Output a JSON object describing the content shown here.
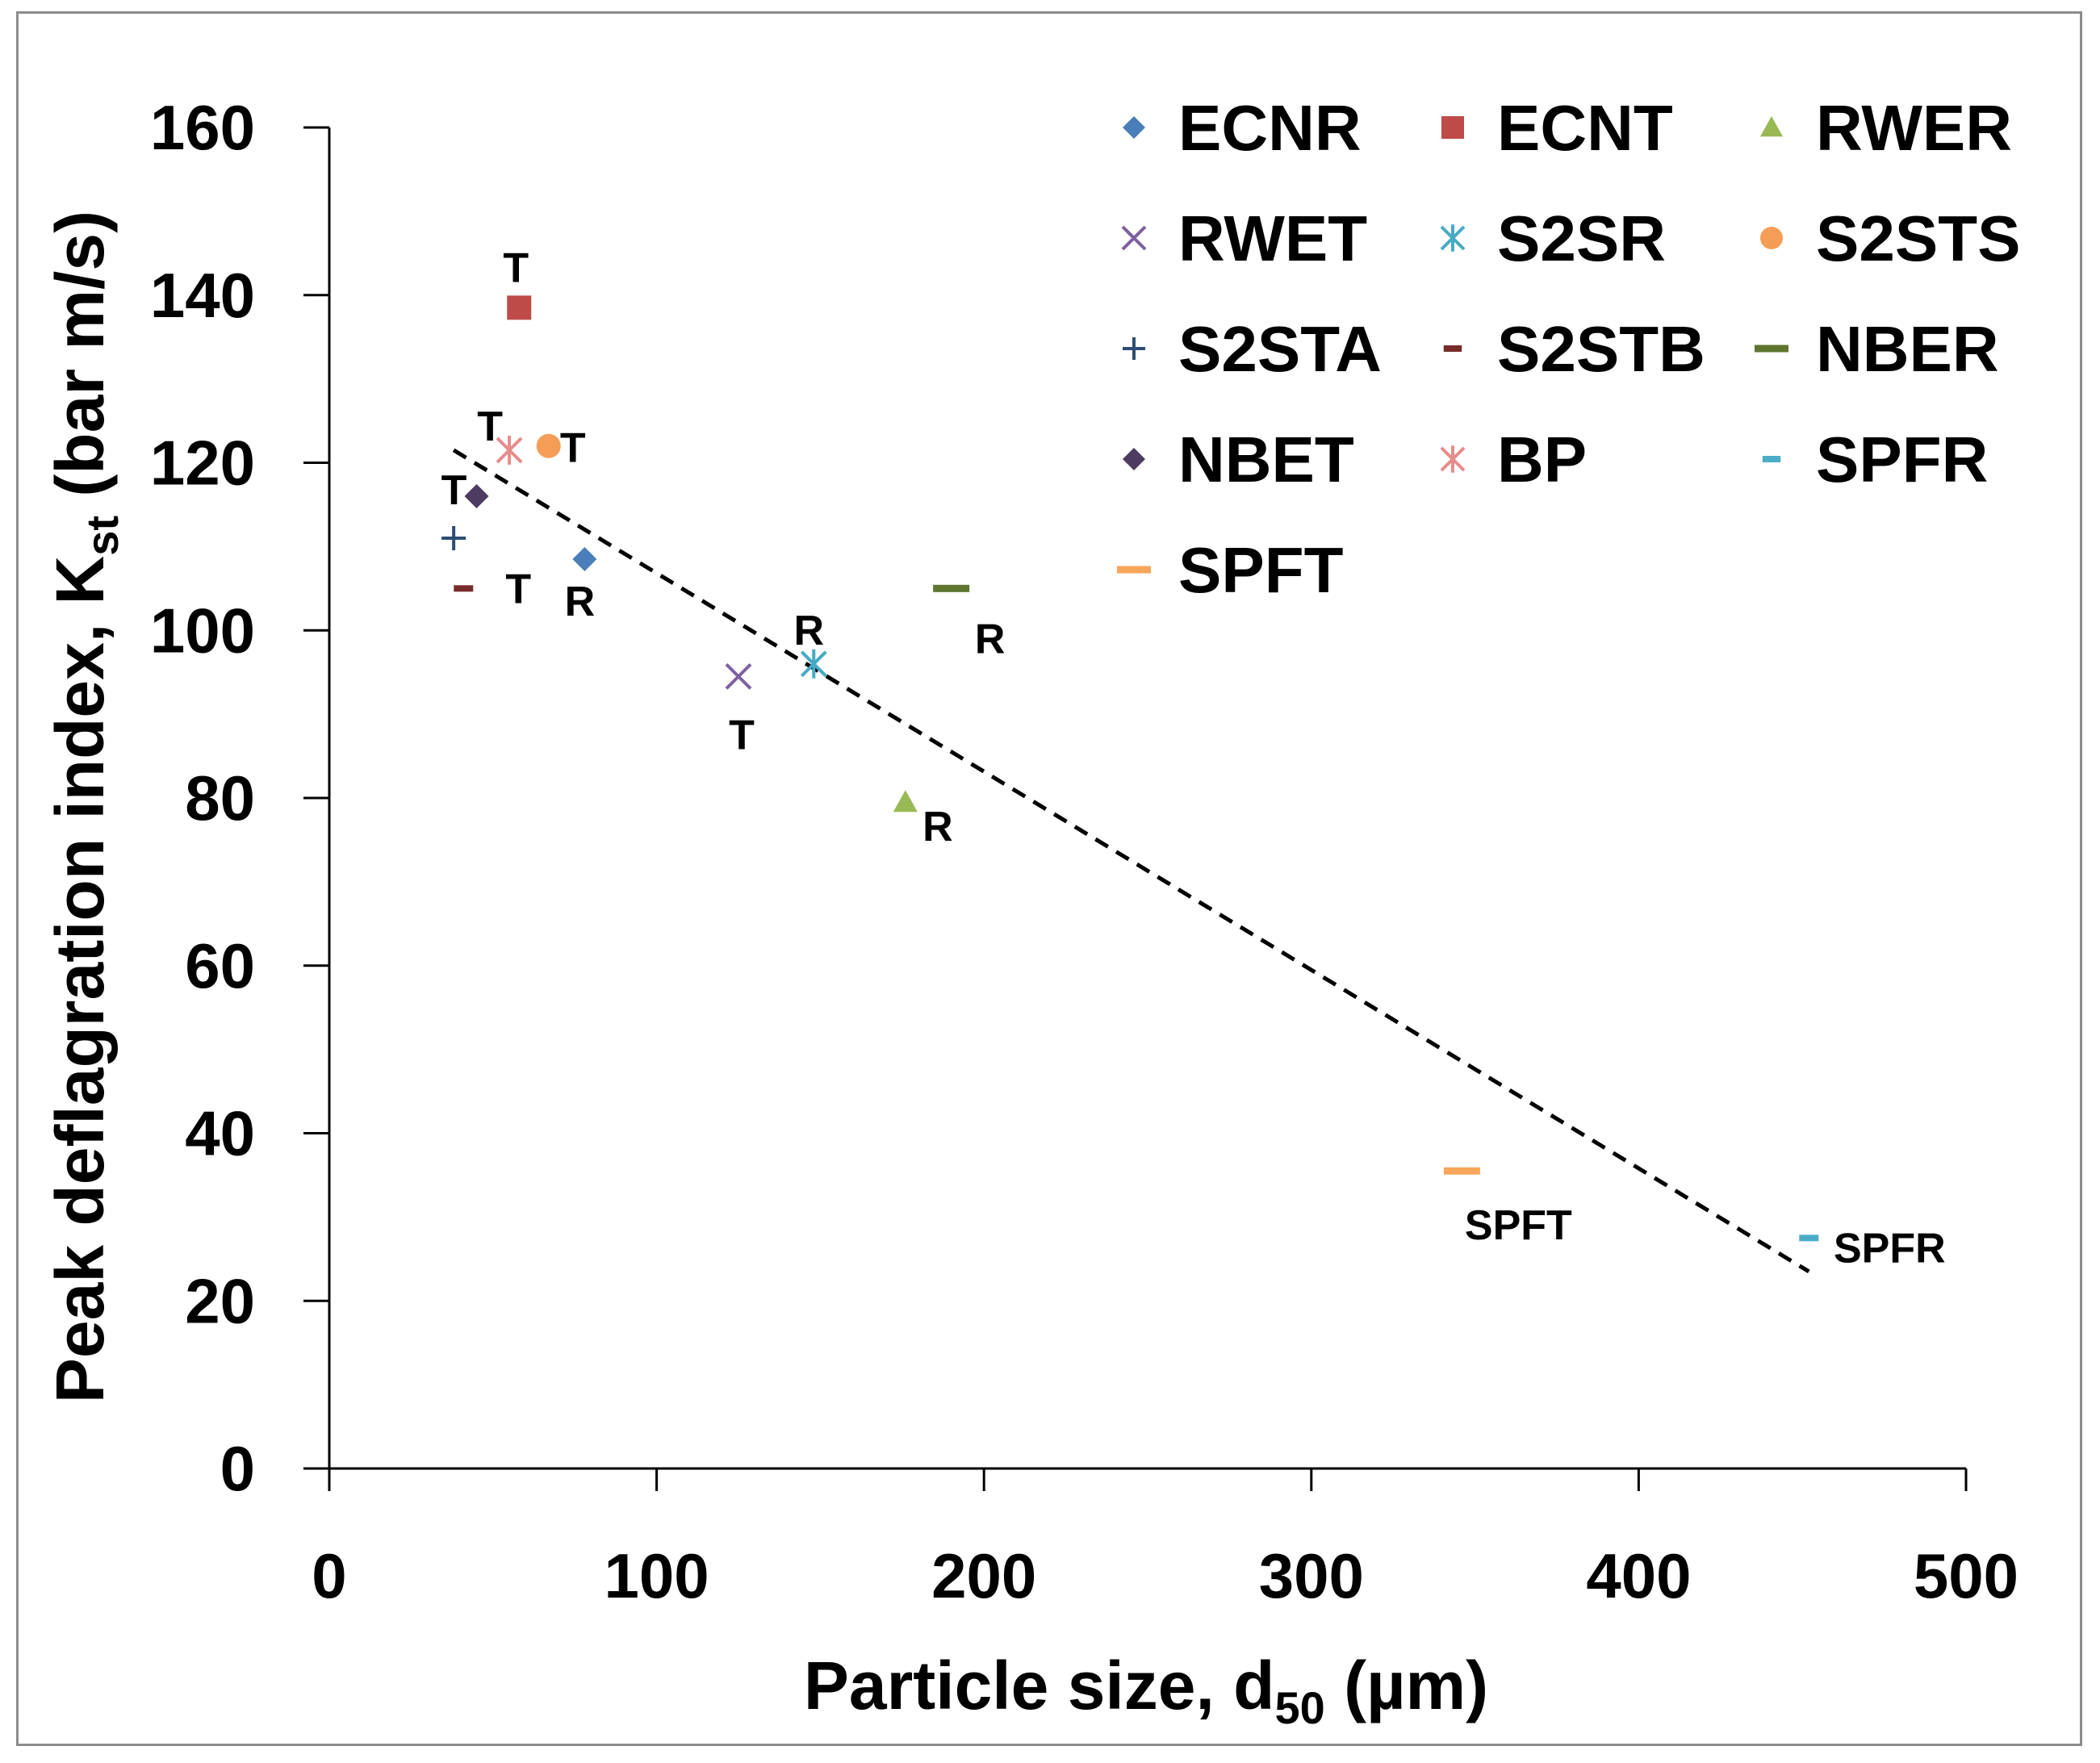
{
  "chart_data": {
    "type": "scatter",
    "title": "",
    "xlabel": "Particle size, d",
    "xlabel_sub": "50",
    "xlabel_tail": " (µm)",
    "ylabel": "Peak deflagration index, K",
    "ylabel_sub": "st",
    "ylabel_tail": " (bar m/s)",
    "xlim": [
      0,
      500
    ],
    "ylim": [
      0,
      160
    ],
    "xticks": [
      0,
      100,
      200,
      300,
      400,
      500
    ],
    "yticks": [
      0,
      20,
      40,
      60,
      80,
      100,
      120,
      140,
      160
    ],
    "grid": false,
    "legend_position": "top-right",
    "series": [
      {
        "name": "ECNR",
        "marker": "diamond",
        "color": "#4a7ebb",
        "points": [
          {
            "x": 78,
            "y": 108.5,
            "label": "R"
          }
        ]
      },
      {
        "name": "ECNT",
        "marker": "square",
        "color": "#be4b48",
        "points": [
          {
            "x": 58,
            "y": 138.5,
            "label": "T"
          }
        ]
      },
      {
        "name": "RWER",
        "marker": "triangle",
        "color": "#98b954",
        "points": [
          {
            "x": 176,
            "y": 79.5,
            "label": "R"
          }
        ]
      },
      {
        "name": "RWET",
        "marker": "x",
        "color": "#7d60a0",
        "points": [
          {
            "x": 125,
            "y": 94.5,
            "label": "T"
          }
        ]
      },
      {
        "name": "S2SR",
        "marker": "star",
        "color": "#46aac5",
        "points": [
          {
            "x": 148,
            "y": 96,
            "label": "R"
          }
        ]
      },
      {
        "name": "S2STS",
        "marker": "circle",
        "color": "#f59d56",
        "points": [
          {
            "x": 67,
            "y": 122,
            "label": "T"
          }
        ]
      },
      {
        "name": "S2STA",
        "marker": "plus",
        "color": "#2c4d75",
        "points": [
          {
            "x": 38,
            "y": 111,
            "label": ""
          }
        ]
      },
      {
        "name": "S2STB",
        "marker": "dash",
        "color": "#772c2a",
        "points": [
          {
            "x": 41,
            "y": 105,
            "label": "T"
          }
        ]
      },
      {
        "name": "NBER",
        "marker": "longdash",
        "color": "#5f7530",
        "points": [
          {
            "x": 190,
            "y": 105,
            "label": "R"
          }
        ]
      },
      {
        "name": "NBET",
        "marker": "diamond",
        "color": "#4d3b62",
        "points": [
          {
            "x": 45,
            "y": 116,
            "label": "T"
          }
        ]
      },
      {
        "name": "BP",
        "marker": "star",
        "color": "#e68c8b",
        "points": [
          {
            "x": 55,
            "y": 121.5,
            "label": "T"
          }
        ]
      },
      {
        "name": "SPFR",
        "marker": "dash",
        "color": "#4bacc6",
        "points": [
          {
            "x": 452,
            "y": 27.5,
            "label": "SPFR"
          }
        ]
      },
      {
        "name": "SPFT",
        "marker": "longdash",
        "color": "#f9a55a",
        "points": [
          {
            "x": 346,
            "y": 35.5,
            "label": "SPFT"
          }
        ]
      }
    ],
    "trendline": {
      "style": "dashed",
      "color": "#000000",
      "x": [
        38,
        452
      ],
      "y": [
        121.5,
        23.5
      ]
    }
  }
}
